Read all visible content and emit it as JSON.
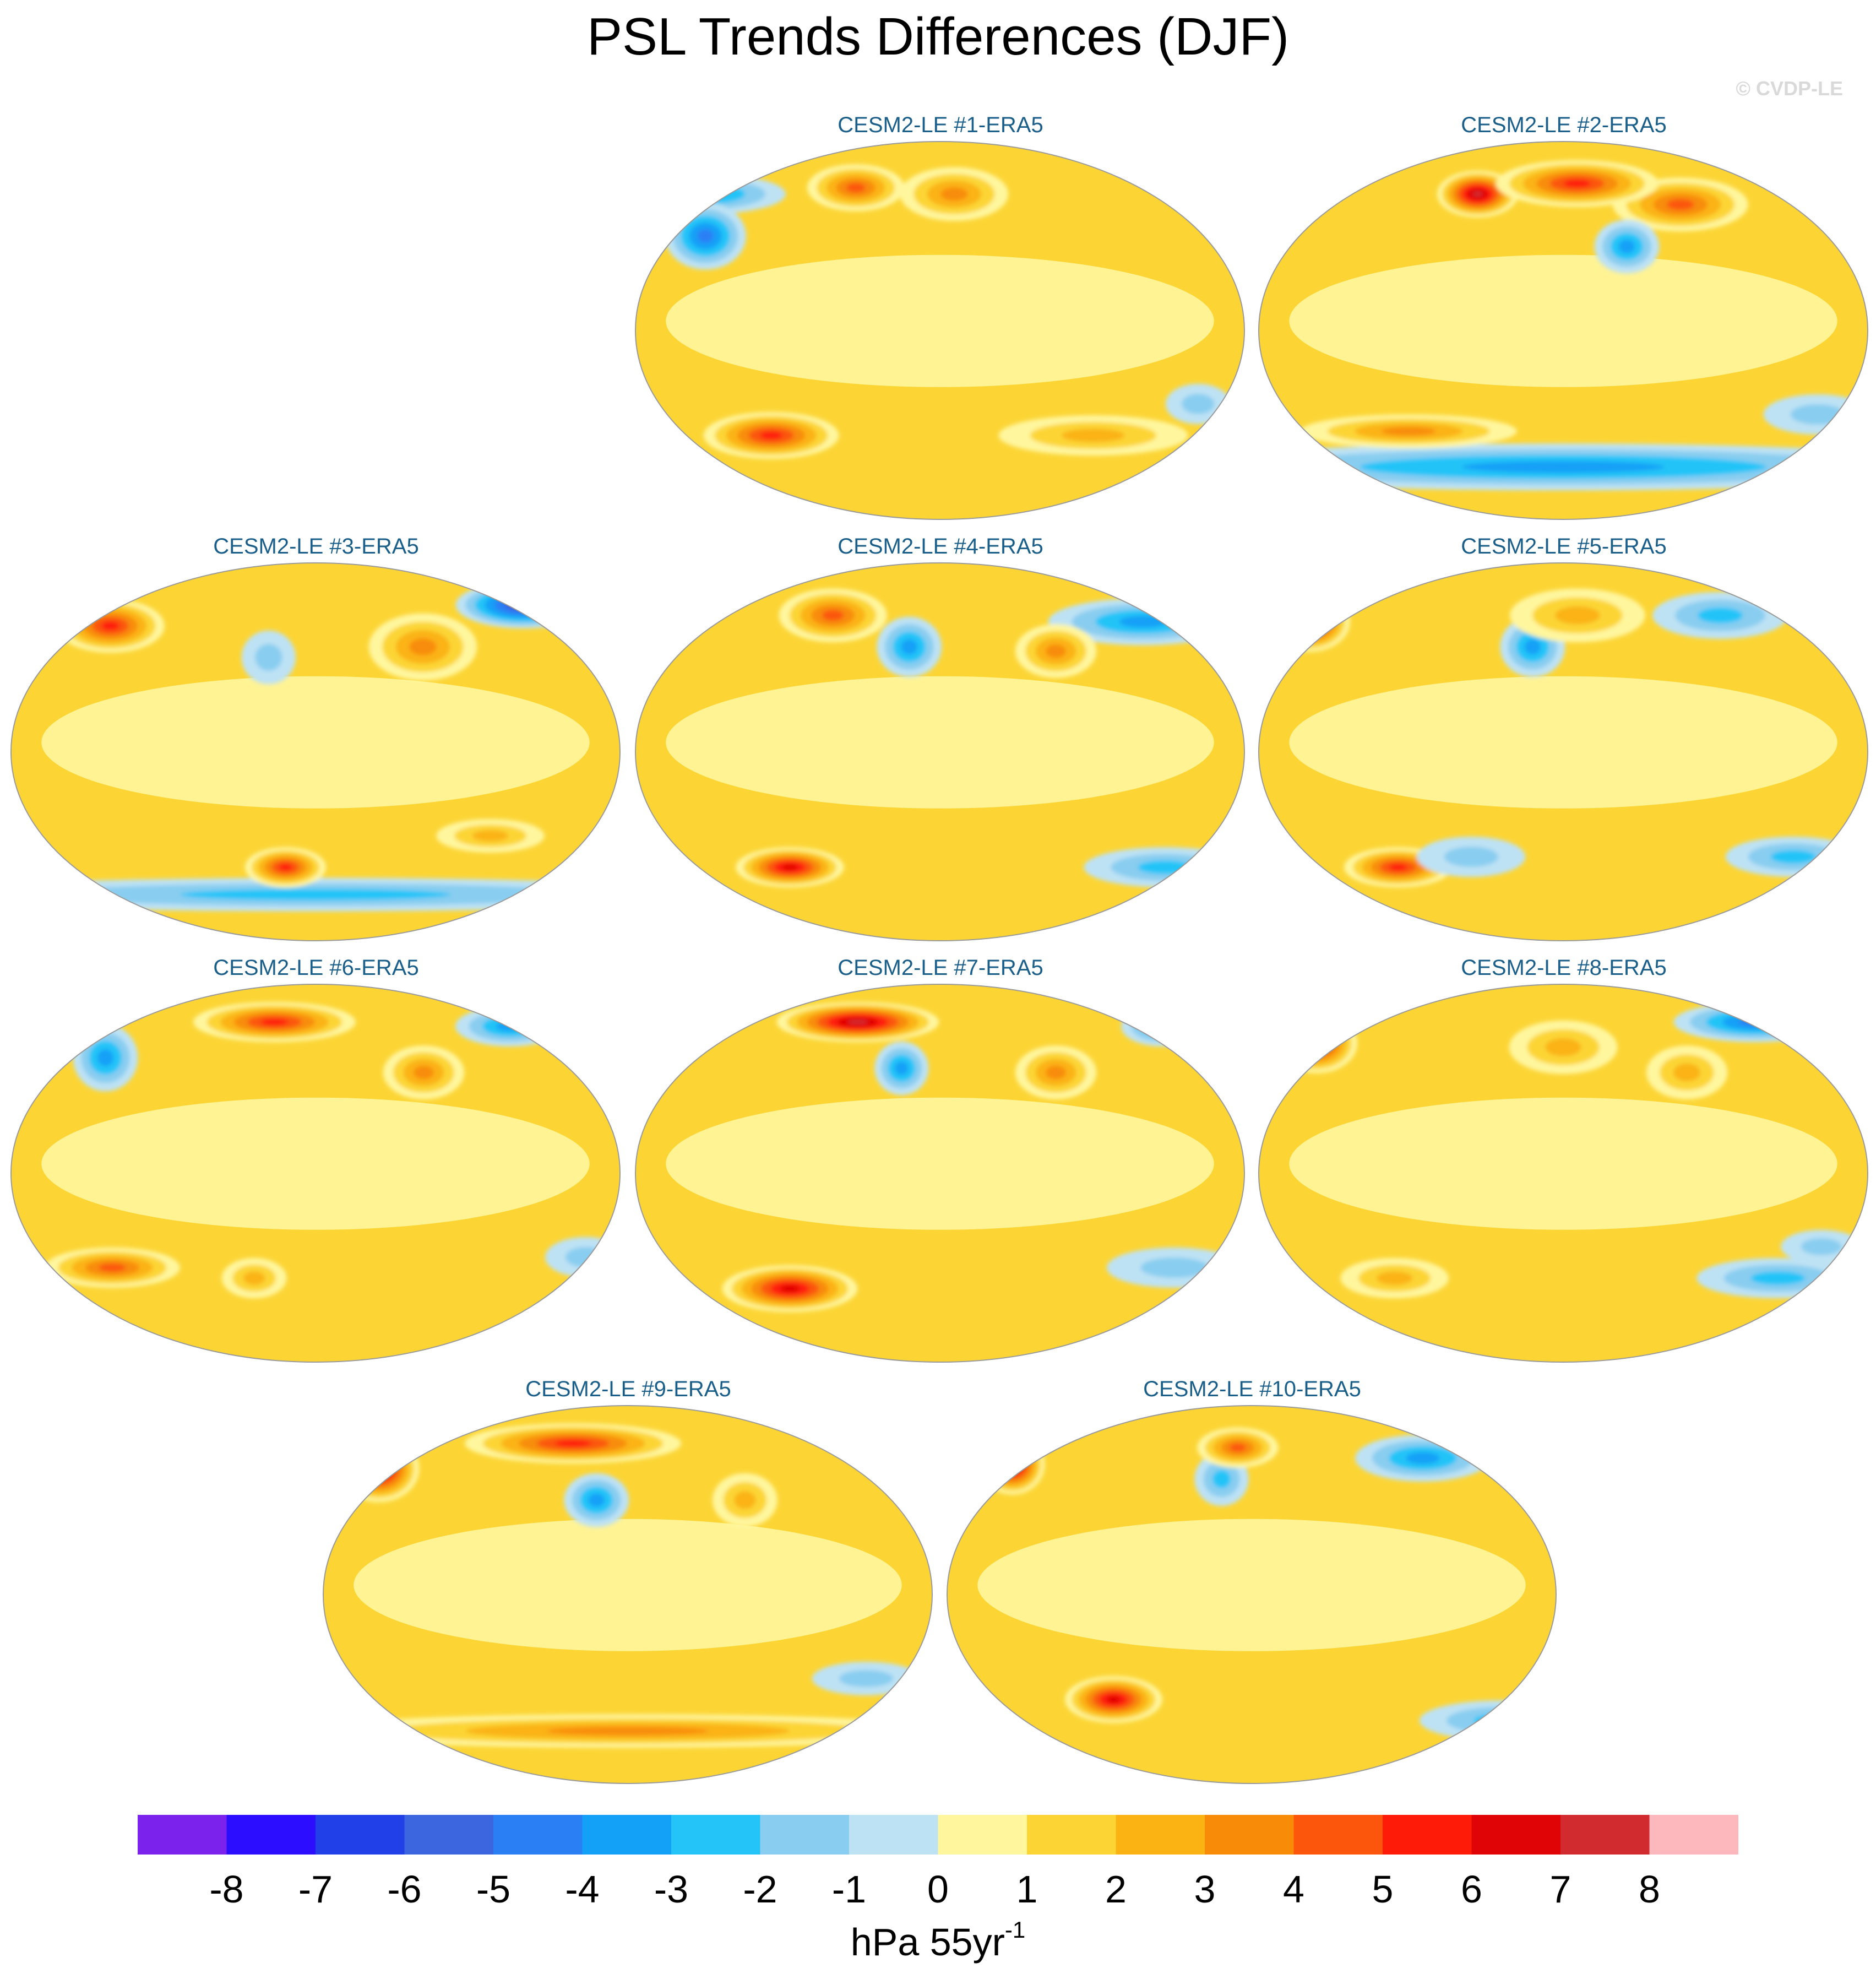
{
  "figure": {
    "title": "PSL Trends Differences (DJF)",
    "watermark": "© CVDP-LE",
    "units_main": "hPa 55yr",
    "units_exp": "-1"
  },
  "chart_data": {
    "type": "heatmap",
    "projection": "Robinson (global map panels)",
    "variable": "PSL trend difference, DJF",
    "panels": [
      {
        "title": "CESM2-LE #1-ERA5",
        "features": [
          {
            "lon": -165,
            "lat": 65,
            "sx": 30,
            "sy": 6,
            "value": -3.5
          },
          {
            "lon": -150,
            "lat": 45,
            "sx": 15,
            "sy": 10,
            "value": -4.5
          },
          {
            "lon": -60,
            "lat": 68,
            "sx": 18,
            "sy": 7,
            "value": 5
          },
          {
            "lon": 10,
            "lat": 65,
            "sx": 20,
            "sy": 8,
            "value": 4
          },
          {
            "lon": -110,
            "lat": -50,
            "sx": 25,
            "sy": 7,
            "value": 6
          },
          {
            "lon": 100,
            "lat": -50,
            "sx": 35,
            "sy": 6,
            "value": 3
          },
          {
            "lon": 160,
            "lat": -35,
            "sx": 12,
            "sy": 6,
            "value": -2
          }
        ]
      },
      {
        "title": "CESM2-LE #2-ERA5",
        "features": [
          {
            "lon": 80,
            "lat": 60,
            "sx": 25,
            "sy": 8,
            "value": 5
          },
          {
            "lon": -60,
            "lat": 65,
            "sx": 15,
            "sy": 7,
            "value": 8
          },
          {
            "lon": 10,
            "lat": 70,
            "sx": 30,
            "sy": 7,
            "value": 6
          },
          {
            "lon": 40,
            "lat": 40,
            "sx": 12,
            "sy": 8,
            "value": -3.5
          },
          {
            "lon": 0,
            "lat": -65,
            "sx": 150,
            "sy": 7,
            "value": -4
          },
          {
            "lon": -100,
            "lat": -48,
            "sx": 40,
            "sy": 5,
            "value": 3.5
          },
          {
            "lon": 160,
            "lat": -40,
            "sx": 20,
            "sy": 6,
            "value": -2
          }
        ]
      },
      {
        "title": "CESM2-LE #3-ERA5",
        "features": [
          {
            "lon": 150,
            "lat": 70,
            "sx": 25,
            "sy": 7,
            "value": -6.5
          },
          {
            "lon": -140,
            "lat": 60,
            "sx": 20,
            "sy": 8,
            "value": 5.5
          },
          {
            "lon": 70,
            "lat": 50,
            "sx": 20,
            "sy": 10,
            "value": 4
          },
          {
            "lon": -30,
            "lat": 45,
            "sx": 10,
            "sy": 8,
            "value": -2
          },
          {
            "lon": 0,
            "lat": -68,
            "sx": 150,
            "sy": 5,
            "value": -2.5
          },
          {
            "lon": -20,
            "lat": -55,
            "sx": 15,
            "sy": 6,
            "value": 5.5
          },
          {
            "lon": 110,
            "lat": -40,
            "sx": 20,
            "sy": 5,
            "value": 2.5
          }
        ]
      },
      {
        "title": "CESM2-LE #4-ERA5",
        "features": [
          {
            "lon": 140,
            "lat": 62,
            "sx": 35,
            "sy": 7,
            "value": -4
          },
          {
            "lon": -75,
            "lat": 65,
            "sx": 20,
            "sy": 8,
            "value": 5
          },
          {
            "lon": -20,
            "lat": 50,
            "sx": 12,
            "sy": 9,
            "value": -4
          },
          {
            "lon": 75,
            "lat": 48,
            "sx": 15,
            "sy": 8,
            "value": 4
          },
          {
            "lon": -100,
            "lat": -55,
            "sx": 20,
            "sy": 6,
            "value": 6.5
          },
          {
            "lon": 150,
            "lat": -55,
            "sx": 30,
            "sy": 6,
            "value": -2.5
          }
        ]
      },
      {
        "title": "CESM2-LE #5-ERA5",
        "features": [
          {
            "lon": -175,
            "lat": 62,
            "sx": 15,
            "sy": 9,
            "value": 8
          },
          {
            "lon": 110,
            "lat": 65,
            "sx": 25,
            "sy": 7,
            "value": -3
          },
          {
            "lon": -20,
            "lat": 50,
            "sx": 12,
            "sy": 9,
            "value": -4
          },
          {
            "lon": 10,
            "lat": 65,
            "sx": 25,
            "sy": 8,
            "value": 3
          },
          {
            "lon": -110,
            "lat": -55,
            "sx": 20,
            "sy": 6,
            "value": 6
          },
          {
            "lon": 150,
            "lat": -50,
            "sx": 25,
            "sy": 6,
            "value": -3
          },
          {
            "lon": -60,
            "lat": -50,
            "sx": 20,
            "sy": 6,
            "value": -2
          }
        ]
      },
      {
        "title": "CESM2-LE #6-ERA5",
        "features": [
          {
            "lon": -30,
            "lat": 72,
            "sx": 30,
            "sy": 6,
            "value": 6
          },
          {
            "lon": 140,
            "lat": 70,
            "sx": 20,
            "sy": 6,
            "value": -4
          },
          {
            "lon": -140,
            "lat": 55,
            "sx": 12,
            "sy": 10,
            "value": -4
          },
          {
            "lon": 70,
            "lat": 48,
            "sx": 15,
            "sy": 8,
            "value": 4
          },
          {
            "lon": -130,
            "lat": -45,
            "sx": 25,
            "sy": 6,
            "value": 5
          },
          {
            "lon": -40,
            "lat": -50,
            "sx": 12,
            "sy": 6,
            "value": 3
          },
          {
            "lon": 170,
            "lat": -40,
            "sx": 15,
            "sy": 6,
            "value": -2
          }
        ]
      },
      {
        "title": "CESM2-LE #7-ERA5",
        "features": [
          {
            "lon": -60,
            "lat": 72,
            "sx": 30,
            "sy": 6,
            "value": 8
          },
          {
            "lon": 160,
            "lat": 70,
            "sx": 15,
            "sy": 6,
            "value": -4
          },
          {
            "lon": -25,
            "lat": 50,
            "sx": 10,
            "sy": 8,
            "value": -4
          },
          {
            "lon": 75,
            "lat": 48,
            "sx": 15,
            "sy": 8,
            "value": 4
          },
          {
            "lon": -100,
            "lat": -55,
            "sx": 25,
            "sy": 7,
            "value": 6.5
          },
          {
            "lon": 150,
            "lat": -45,
            "sx": 25,
            "sy": 6,
            "value": -2
          }
        ]
      },
      {
        "title": "CESM2-LE #8-ERA5",
        "features": [
          {
            "lon": 140,
            "lat": 72,
            "sx": 30,
            "sy": 6,
            "value": -5
          },
          {
            "lon": -170,
            "lat": 62,
            "sx": 15,
            "sy": 9,
            "value": 7
          },
          {
            "lon": 80,
            "lat": 48,
            "sx": 15,
            "sy": 8,
            "value": 3
          },
          {
            "lon": 0,
            "lat": 60,
            "sx": 20,
            "sy": 8,
            "value": 3
          },
          {
            "lon": 140,
            "lat": -50,
            "sx": 30,
            "sy": 6,
            "value": -3
          },
          {
            "lon": -110,
            "lat": -50,
            "sx": 20,
            "sy": 6,
            "value": 3
          },
          {
            "lon": 160,
            "lat": -35,
            "sx": 15,
            "sy": 5,
            "value": -2
          }
        ]
      },
      {
        "title": "CESM2-LE #9-ERA5",
        "features": [
          {
            "lon": -170,
            "lat": 60,
            "sx": 15,
            "sy": 10,
            "value": 8
          },
          {
            "lon": -40,
            "lat": 72,
            "sx": 40,
            "sy": 6,
            "value": 6
          },
          {
            "lon": -20,
            "lat": 45,
            "sx": 12,
            "sy": 8,
            "value": -4
          },
          {
            "lon": 75,
            "lat": 45,
            "sx": 12,
            "sy": 8,
            "value": 3
          },
          {
            "lon": 0,
            "lat": -65,
            "sx": 120,
            "sy": 5,
            "value": 3.5
          },
          {
            "lon": 150,
            "lat": -40,
            "sx": 20,
            "sy": 5,
            "value": -2
          }
        ]
      },
      {
        "title": "CESM2-LE #10-ERA5",
        "features": [
          {
            "lon": -165,
            "lat": 62,
            "sx": 12,
            "sy": 9,
            "value": 8
          },
          {
            "lon": 120,
            "lat": 65,
            "sx": 25,
            "sy": 7,
            "value": -3.5
          },
          {
            "lon": -20,
            "lat": 55,
            "sx": 10,
            "sy": 8,
            "value": -3
          },
          {
            "lon": -10,
            "lat": 70,
            "sx": 15,
            "sy": 6,
            "value": 5
          },
          {
            "lon": -90,
            "lat": -50,
            "sx": 18,
            "sy": 7,
            "value": 6.5
          },
          {
            "lon": 170,
            "lat": -60,
            "sx": 30,
            "sy": 6,
            "value": -3
          }
        ]
      }
    ],
    "colorbar": {
      "colors": [
        "#7b22ec",
        "#2c0dff",
        "#2140e8",
        "#3b66e0",
        "#2a7ff5",
        "#13a0f7",
        "#24c4f8",
        "#89cdf0",
        "#bde2f4",
        "#fff69e",
        "#fcd535",
        "#fbb314",
        "#f88c08",
        "#fb560b",
        "#fe1c08",
        "#e00406",
        "#d22b2f",
        "#fcb8bd"
      ],
      "tick_labels": [
        "-8",
        "-7",
        "-6",
        "-5",
        "-4",
        "-3",
        "-2",
        "-1",
        "0",
        "1",
        "2",
        "3",
        "4",
        "5",
        "6",
        "7",
        "8"
      ]
    }
  }
}
